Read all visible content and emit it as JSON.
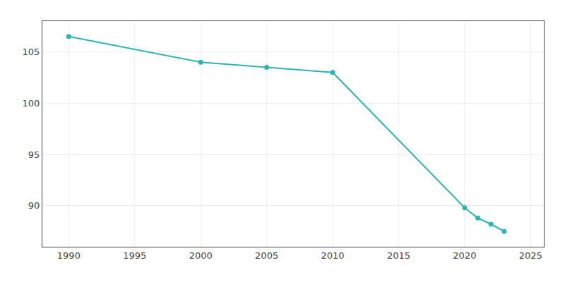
{
  "chart_data": {
    "type": "line",
    "x": [
      1990,
      2000,
      2005,
      2010,
      2020,
      2021,
      2022,
      2023
    ],
    "values": [
      106.5,
      104.0,
      103.5,
      103.0,
      89.8,
      88.8,
      88.2,
      87.5
    ],
    "color": "#2cb5b5",
    "marker": "circle",
    "xlim": [
      1988,
      2026
    ],
    "ylim": [
      86,
      108
    ],
    "xticks": [
      1990,
      1995,
      2000,
      2005,
      2010,
      2015,
      2020,
      2025
    ],
    "yticks": [
      90,
      95,
      100,
      105
    ],
    "grid": true
  }
}
